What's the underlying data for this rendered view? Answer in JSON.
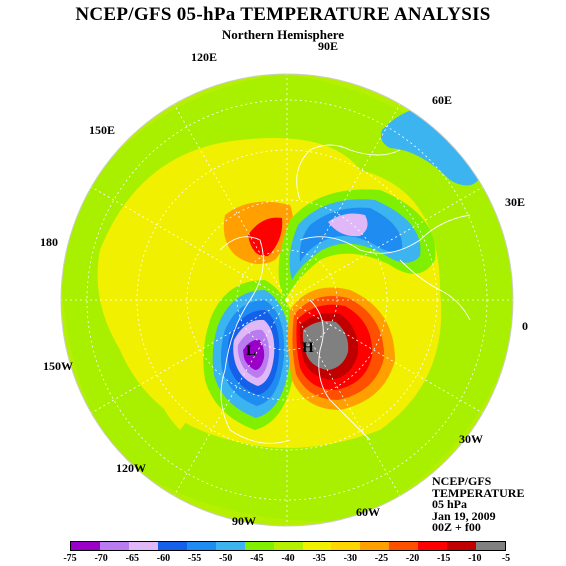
{
  "title": "NCEP/GFS 05-hPa TEMPERATURE ANALYSIS",
  "subtitle": "Northern Hemisphere",
  "longitude_labels": [
    "90E",
    "60E",
    "30E",
    "0",
    "30W",
    "60W",
    "90W",
    "120W",
    "150W",
    "180",
    "150E",
    "120E"
  ],
  "info_lines": [
    "NCEP/GFS",
    "TEMPERATURE",
    "05 hPa",
    "Jan 19, 2009",
    "00Z + f00"
  ],
  "centers": {
    "low": "L",
    "high": "H"
  },
  "legend": {
    "ticks": [
      "-75",
      "-70",
      "-65",
      "-60",
      "-55",
      "-50",
      "-45",
      "-40",
      "-35",
      "-30",
      "-25",
      "-20",
      "-15",
      "-10",
      "-5"
    ],
    "colors": [
      "#9a00c8",
      "#b87cf0",
      "#e0b8f8",
      "#1460e8",
      "#1e8cf0",
      "#3cb4f0",
      "#80f000",
      "#b4f000",
      "#f0f000",
      "#ffd700",
      "#ffa000",
      "#ff5000",
      "#ff0000",
      "#c00000",
      "#808080"
    ]
  }
}
